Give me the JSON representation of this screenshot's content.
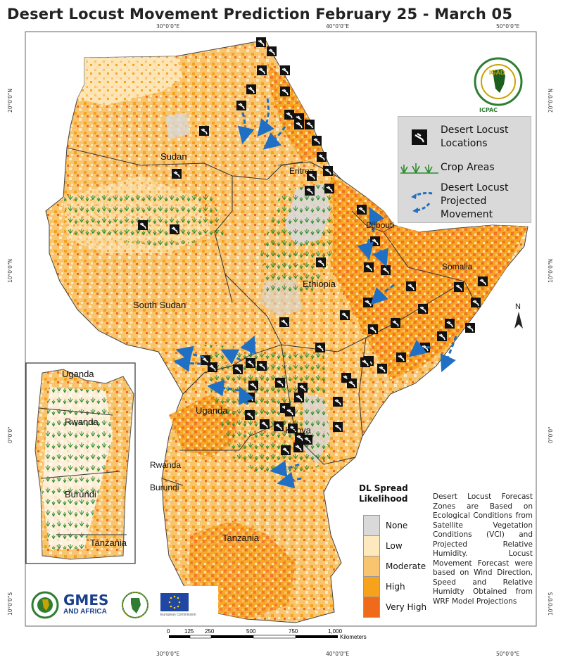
{
  "title": "Desert Locust Movement Prediction February 25 - March 05",
  "coords": {
    "top": [
      "30°0'0\"E",
      "40°0'0\"E",
      "50°0'0\"E"
    ],
    "bottom": [
      "30°0'0\"E",
      "40°0'0\"E",
      "50°0'0\"E"
    ],
    "left": [
      "20°0'0\"N",
      "10°0'0\"N",
      "0°0'0\"",
      "10°0'0\"S"
    ],
    "right": [
      "20°0'0\"N",
      "10°0'0\"N",
      "0°0'0\"",
      "10°0'0\"S"
    ]
  },
  "countries": {
    "sudan": "Sudan",
    "eritrea": "Eritrea",
    "djibouti": "Djibouti",
    "somalia": "Somalia",
    "ethiopia": "Ethiopia",
    "south_sudan": "South Sudan",
    "uganda": "Uganda",
    "kenya": "Kenya",
    "rwanda": "Rwanda",
    "burundi": "Burundi",
    "tanzania": "Tanzania"
  },
  "inset": {
    "uganda": "Uganda",
    "rwanda": "Rwanda",
    "burundi": "Burundi",
    "tanzania": "Tanzania"
  },
  "legend": {
    "locust_locations": "Desert Locust Locations",
    "crop_areas": "Crop Areas",
    "projected_movement": "Desert Locust Projected Movement"
  },
  "spread_legend": {
    "title": "DL Spread Likelihood",
    "classes": [
      {
        "label": "None",
        "color": "#d9d9d9"
      },
      {
        "label": "Low",
        "color": "#fde9bd"
      },
      {
        "label": "Moderate",
        "color": "#f8c46e"
      },
      {
        "label": "High",
        "color": "#f7a21b"
      },
      {
        "label": "Very High",
        "color": "#f06a1c"
      }
    ]
  },
  "note": "Desert Locust Forecast Zones are Based on Ecological Conditions from Satellite Vegetation Conditions (VCI) and Projected Relative Humidity. Locust Movement Forecast were based on Wind Direction, Speed and Relative Humidty Obtained from WRF Model Projections",
  "north_arrow": "N",
  "logos": {
    "icpac": "ICPAC",
    "igad": "IGAD",
    "gmes": "GMES",
    "gmes_sub": "AND AFRICA",
    "eu": "European Commission"
  },
  "scale": {
    "ticks": [
      "0",
      "125",
      "250",
      "500",
      "750",
      "1,000"
    ],
    "unit": "Kilometers"
  },
  "colors": {
    "none": "#d9d9d9",
    "low": "#fde9bd",
    "moderate": "#f8c46e",
    "high": "#f7a21b",
    "very_high": "#f06a1c",
    "arrow": "#1f6fc4",
    "crop": "#2e8b2e"
  }
}
